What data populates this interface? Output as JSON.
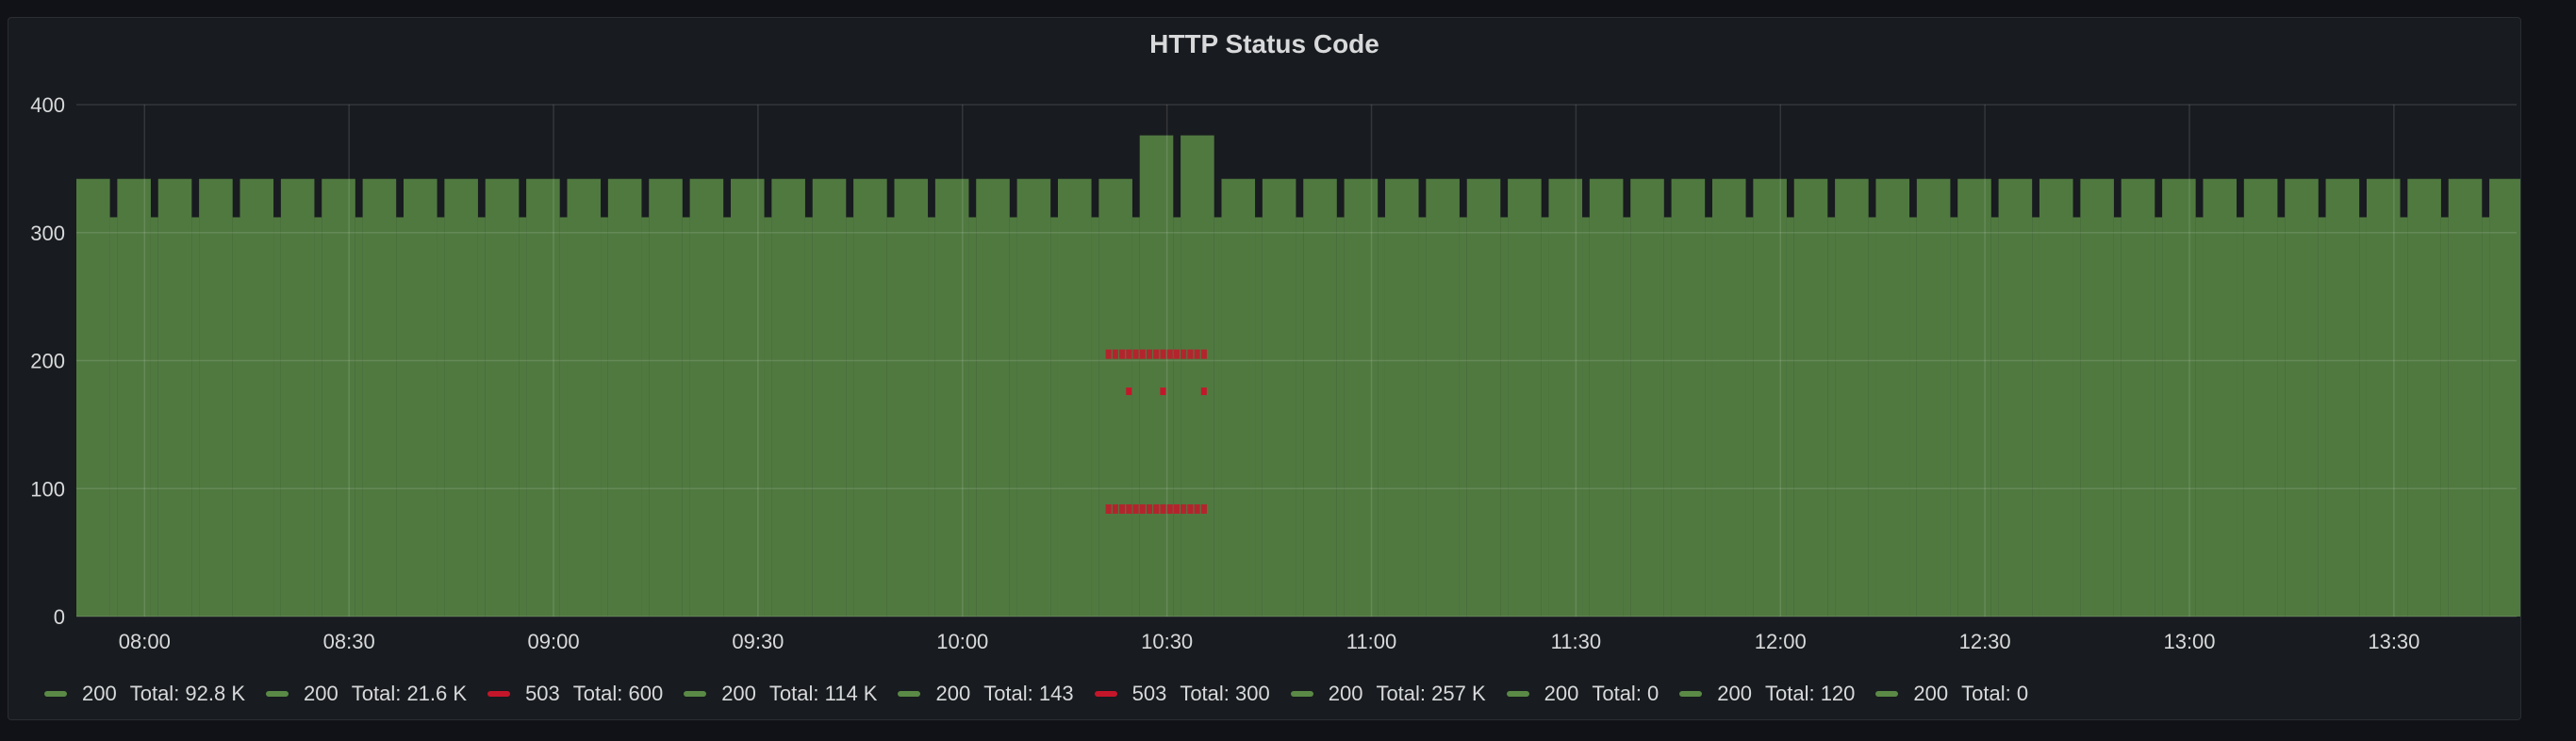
{
  "panel": {
    "title": "HTTP Status Code"
  },
  "colors": {
    "ok": "#5a8a46",
    "error": "#c4162a",
    "grid": "#2f3238",
    "axis_text": "#d8d9da"
  },
  "chart_data": {
    "type": "bar",
    "x_ticks": [
      "08:00",
      "08:30",
      "09:00",
      "09:30",
      "10:00",
      "10:30",
      "11:00",
      "11:30",
      "12:00",
      "12:30",
      "13:00",
      "13:30"
    ],
    "x_range": [
      "07:50",
      "13:48"
    ],
    "ylim": [
      0,
      400
    ],
    "y_ticks": [
      0,
      100,
      200,
      300,
      400
    ],
    "series_total": {
      "name": "200",
      "description_values": "stacked per-interval total",
      "baseline": 342,
      "dip": 312,
      "spike_window": [
        "10:21",
        "10:36"
      ],
      "spike_value": 376
    },
    "series_503": [
      {
        "range": [
          "10:21",
          "10:36"
        ],
        "level": 205
      },
      {
        "range": [
          "10:21",
          "10:36"
        ],
        "level": 84
      }
    ],
    "legend": [
      {
        "name": "200",
        "label": "Total: 92.8 K",
        "color": "ok"
      },
      {
        "name": "200",
        "label": "Total: 21.6 K",
        "color": "ok"
      },
      {
        "name": "503",
        "label": "Total: 600",
        "color": "error"
      },
      {
        "name": "200",
        "label": "Total: 114 K",
        "color": "ok"
      },
      {
        "name": "200",
        "label": "Total: 143",
        "color": "ok"
      },
      {
        "name": "503",
        "label": "Total: 300",
        "color": "error"
      },
      {
        "name": "200",
        "label": "Total: 257 K",
        "color": "ok"
      },
      {
        "name": "200",
        "label": "Total: 0",
        "color": "ok"
      },
      {
        "name": "200",
        "label": "Total: 120",
        "color": "ok"
      },
      {
        "name": "200",
        "label": "Total: 0",
        "color": "ok"
      }
    ]
  }
}
